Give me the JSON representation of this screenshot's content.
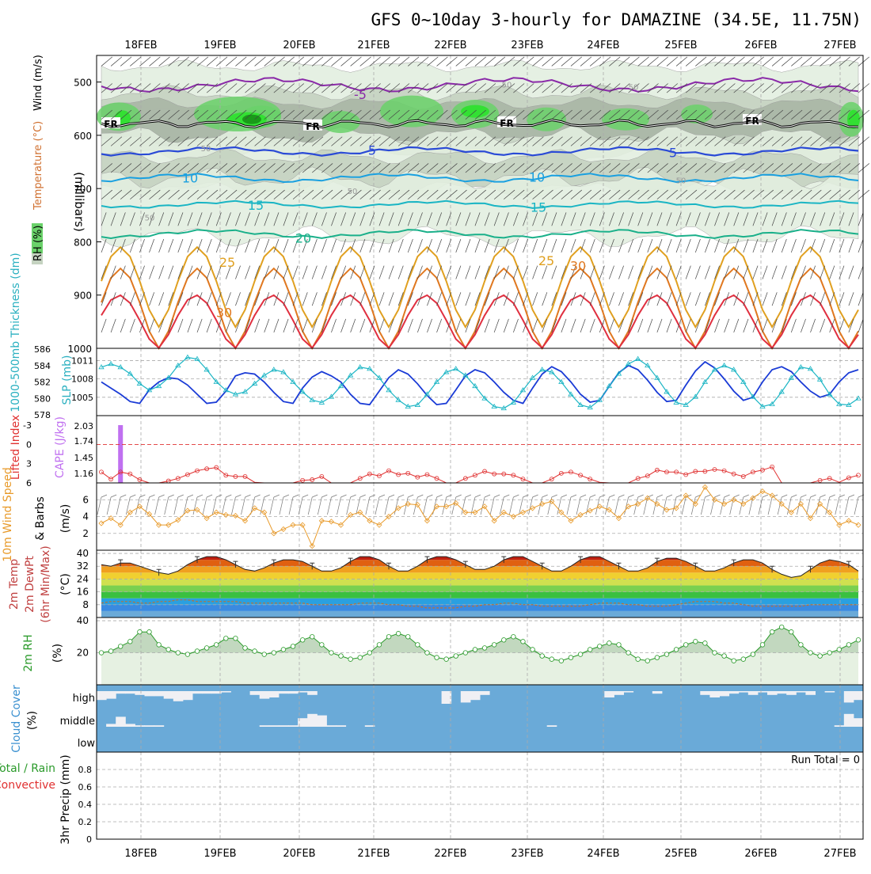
{
  "title": "GFS 0~10day 3-hourly for DAMAZINE (34.5E, 11.75N)",
  "dates": [
    "18FEB",
    "19FEB",
    "20FEB",
    "21FEB",
    "22FEB",
    "23FEB",
    "24FEB",
    "25FEB",
    "26FEB",
    "27FEB"
  ],
  "colors": {
    "rh_light": "#e3efe0",
    "rh_mid": "#c5d3c1",
    "rh_dark": "#a9b6a6",
    "rh_green": "#6ad16a",
    "rh_bright": "#33e033",
    "cloud_blue": "#6aaad8",
    "grid": "#aaaaaa"
  },
  "chart_data": [
    {
      "type": "contour",
      "id": "upper_air",
      "ylabel_parts": [
        "RH (%)",
        "Temperature (°C)",
        "Wind (m/s)"
      ],
      "ylabel2": "(millibars)",
      "yticks": [
        500,
        600,
        700,
        800,
        900,
        1000
      ],
      "ylim": [
        1000,
        450
      ],
      "isotherm_labels": [
        "FR",
        "5",
        "10",
        "15",
        "20",
        "25",
        "30",
        "-5"
      ],
      "rh_labels": [
        "50",
        "50",
        "50",
        "50",
        "50",
        "50"
      ]
    },
    {
      "type": "line",
      "id": "slp_thickness",
      "ylabel_left": "1000-500mb Thickness (dm)",
      "ylabel_right": "SLP (mb)",
      "yticks_left": [
        578,
        580,
        582,
        584,
        586
      ],
      "yticks_right": [
        1005,
        1008,
        1011
      ],
      "series": [
        {
          "name": "SLP (mb)",
          "color": "#1a3bd6",
          "values": [
            1007.5,
            1006.5,
            1005.5,
            1004.3,
            1004.0,
            1006.2,
            1007.5,
            1008.2,
            1008.0,
            1007.0,
            1005.5,
            1004.0,
            1004.2,
            1006.0,
            1008.5,
            1009.0,
            1008.8,
            1007.5,
            1005.8,
            1004.3,
            1004.0,
            1006.5,
            1008.3,
            1009.2,
            1008.5,
            1007.5,
            1005.5,
            1004.0,
            1003.8,
            1006.0,
            1008.2,
            1009.5,
            1008.8,
            1007.2,
            1005.3,
            1003.8,
            1004.0,
            1006.2,
            1008.5,
            1009.5,
            1009.0,
            1007.5,
            1005.8,
            1004.5,
            1004.0,
            1006.5,
            1008.8,
            1010.0,
            1009.2,
            1007.5,
            1005.5,
            1004.2,
            1004.5,
            1006.8,
            1009.0,
            1010.2,
            1009.5,
            1007.8,
            1005.8,
            1004.3,
            1004.5,
            1007.0,
            1009.3,
            1010.8,
            1009.8,
            1008.0,
            1006.0,
            1004.5,
            1005.0,
            1007.5,
            1009.5,
            1010.0,
            1009.2,
            1007.5,
            1006.0,
            1005.0,
            1005.5,
            1007.5,
            1009.0,
            1009.5
          ]
        },
        {
          "name": "1000-500mb Thickness (dm)",
          "color": "#1ab5c4",
          "values": [
            583.8,
            584.2,
            583.8,
            583.0,
            581.8,
            581.0,
            581.5,
            582.5,
            584.0,
            585.0,
            584.8,
            583.5,
            582.0,
            581.0,
            580.5,
            580.8,
            581.8,
            582.8,
            583.5,
            583.2,
            582.0,
            580.8,
            579.8,
            579.5,
            580.2,
            581.5,
            582.8,
            583.8,
            583.6,
            582.5,
            581.0,
            579.8,
            579.0,
            579.2,
            580.5,
            582.0,
            583.2,
            583.6,
            582.8,
            581.5,
            580.0,
            579.0,
            578.8,
            579.5,
            581.0,
            582.5,
            583.5,
            583.2,
            582.0,
            580.5,
            579.2,
            578.9,
            579.8,
            581.5,
            583.0,
            584.2,
            584.8,
            584.0,
            582.5,
            580.8,
            579.5,
            579.2,
            580.2,
            582.0,
            583.5,
            584.0,
            583.5,
            582.0,
            580.2,
            579.0,
            579.3,
            580.8,
            582.5,
            583.8,
            583.6,
            582.3,
            580.5,
            579.3,
            579.2,
            580.0
          ]
        }
      ]
    },
    {
      "type": "line",
      "id": "cape_li",
      "ylabel_left": "Lifted Index",
      "ylabel_right": "CAPE (J/kg)",
      "yticks_left": [
        "-3",
        "0",
        "3",
        "6"
      ],
      "yticks_right": [
        "2.03",
        "1.74",
        "1.45",
        "1.16"
      ],
      "cape_bar": {
        "index": 2,
        "value": 2.03
      },
      "series": [
        {
          "name": "Lifted Index",
          "color": "#e03030",
          "values": [
            4.3,
            5.4,
            4.3,
            4.6,
            5.5,
            6.0,
            6.3,
            5.7,
            5.3,
            4.7,
            4.1,
            3.8,
            3.6,
            4.8,
            5.0,
            5.0,
            5.9,
            6.2,
            6.4,
            6.2,
            6.0,
            5.6,
            5.5,
            5.0,
            6.1,
            6.6,
            6.1,
            5.3,
            4.6,
            4.9,
            4.1,
            4.7,
            4.5,
            5.1,
            4.7,
            5.3,
            6.4,
            6.3,
            5.3,
            4.8,
            4.2,
            4.6,
            4.6,
            4.8,
            5.4,
            6.4,
            6.1,
            5.4,
            4.5,
            4.3,
            4.8,
            5.4,
            5.9,
            6.4,
            6.8,
            6.4,
            5.3,
            4.9,
            4.0,
            4.3,
            4.3,
            4.7,
            4.2,
            4.2,
            3.9,
            4.1,
            4.6,
            5.0,
            4.3,
            4.0,
            3.5,
            6.3,
            6.6,
            7.0,
            6.5,
            5.6,
            5.3,
            5.9,
            5.2,
            4.8
          ]
        }
      ]
    },
    {
      "type": "line",
      "id": "wind10m",
      "ylabel_parts": [
        "10m Wind Speed",
        "& Barbs"
      ],
      "yunit": "(m/s)",
      "yticks": [
        2,
        4,
        6
      ],
      "series": [
        {
          "name": "10m Wind Speed",
          "color": "#e89a2a",
          "values": [
            3.2,
            3.8,
            3.0,
            4.5,
            5.2,
            4.3,
            3.0,
            3.0,
            3.6,
            4.7,
            4.8,
            3.8,
            4.5,
            4.2,
            4.1,
            3.5,
            5.0,
            4.5,
            2.0,
            2.5,
            3.0,
            3.0,
            0.5,
            3.5,
            3.4,
            3.0,
            4.2,
            4.5,
            3.5,
            3.0,
            4.0,
            5.0,
            5.5,
            5.4,
            3.5,
            5.2,
            5.2,
            5.6,
            4.5,
            4.5,
            5.2,
            3.5,
            4.5,
            4.0,
            4.5,
            5.0,
            5.5,
            5.8,
            4.5,
            3.5,
            4.2,
            4.7,
            5.2,
            4.8,
            3.8,
            5.2,
            5.5,
            6.2,
            5.5,
            4.8,
            5.0,
            6.5,
            5.5,
            7.5,
            6.0,
            5.5,
            6.0,
            5.5,
            6.2,
            7.0,
            6.5,
            5.5,
            4.5,
            5.5,
            3.8,
            5.5,
            4.5,
            3.0,
            3.5,
            3.0
          ]
        }
      ]
    },
    {
      "type": "area",
      "id": "temp2m",
      "ylabel_parts": [
        "2m Temp",
        "2m DewPt",
        "(6hr Min/Max)"
      ],
      "yunit": "(°C)",
      "yticks": [
        8,
        16,
        24,
        32,
        40
      ],
      "ylim": [
        0,
        42
      ],
      "series": [
        {
          "name": "2m Temp",
          "values": [
            33,
            32,
            34,
            34,
            32,
            30,
            28,
            27,
            29,
            33,
            36,
            38,
            38,
            36,
            33,
            30,
            29,
            31,
            34,
            36,
            36,
            35,
            32,
            29,
            29,
            31,
            35,
            38,
            38,
            36,
            32,
            29,
            29,
            32,
            36,
            38,
            38,
            36,
            33,
            30,
            30,
            32,
            36,
            38,
            38,
            35,
            32,
            29,
            29,
            32,
            36,
            38,
            38,
            35,
            32,
            29,
            29,
            31,
            35,
            37,
            37,
            35,
            32,
            29,
            29,
            31,
            34,
            36,
            36,
            34,
            30,
            27,
            25,
            26,
            30,
            34,
            36,
            35,
            33,
            29
          ]
        },
        {
          "name": "2m DewPt",
          "values": [
            9,
            10,
            10,
            10,
            9,
            9,
            10,
            10,
            11,
            11,
            10,
            10,
            10,
            10,
            10,
            9,
            9,
            9,
            9,
            9,
            9,
            9,
            8,
            8,
            8,
            8,
            8,
            9,
            9,
            9,
            8,
            8,
            7,
            7,
            6,
            6,
            6,
            6,
            7,
            7,
            8,
            8,
            9,
            9,
            8,
            8,
            7,
            7,
            7,
            7,
            7,
            8,
            9,
            9,
            9,
            8,
            8,
            7,
            7,
            7,
            8,
            9,
            10,
            10,
            10,
            9,
            9,
            8,
            7,
            7,
            7,
            7,
            7,
            7,
            8,
            8,
            8,
            8,
            8,
            8
          ]
        }
      ]
    },
    {
      "type": "area",
      "id": "rh2m",
      "ylabel": "2m RH",
      "yunit": "(%)",
      "yticks": [
        20,
        40
      ],
      "ylim": [
        0,
        42
      ],
      "series": [
        {
          "name": "2m RH",
          "color": "#2a9a2a",
          "values": [
            20,
            21,
            24,
            27,
            33,
            33,
            25,
            22,
            20,
            19,
            21,
            23,
            25,
            29,
            29,
            23,
            21,
            19,
            20,
            22,
            24,
            28,
            30,
            25,
            20,
            18,
            16,
            17,
            20,
            25,
            30,
            32,
            30,
            25,
            20,
            17,
            16,
            18,
            20,
            22,
            23,
            25,
            28,
            30,
            27,
            22,
            18,
            16,
            15,
            17,
            19,
            22,
            24,
            26,
            25,
            20,
            16,
            15,
            17,
            19,
            22,
            25,
            27,
            26,
            20,
            18,
            15,
            16,
            19,
            25,
            33,
            36,
            33,
            25,
            20,
            18,
            20,
            22,
            25,
            28
          ]
        }
      ]
    },
    {
      "type": "area",
      "id": "cloud",
      "ylabel": "Cloud Cover",
      "yunit": "(%)",
      "levels": [
        "high",
        "middle",
        "low"
      ]
    },
    {
      "type": "bar",
      "id": "precip",
      "ylabel": "3hr Precip (mm)",
      "legend_left": [
        "Total / Rain",
        "Convective"
      ],
      "yticks": [
        "0",
        "0.2",
        "0.4",
        "0.6",
        "0.8"
      ],
      "ylim": [
        0,
        1
      ],
      "run_total": "Run Total = 0"
    }
  ]
}
